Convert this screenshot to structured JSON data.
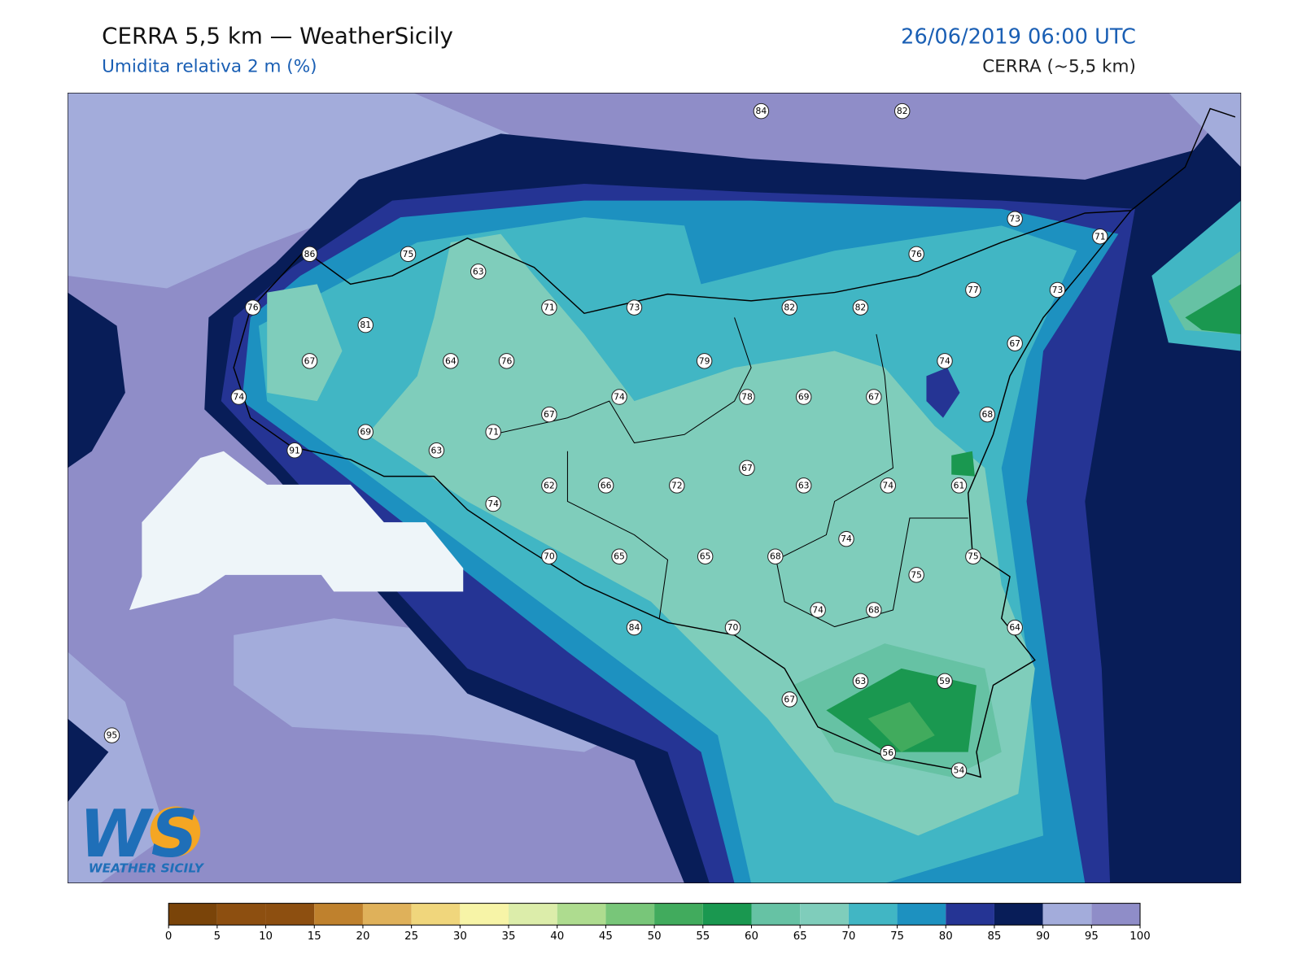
{
  "header": {
    "title": "CERRA 5,5 km — WeatherSicily",
    "subtitle": "Umidita relativa 2 m (%)",
    "datetime": "26/06/2019 06:00 UTC",
    "model": "CERRA (~5,5 km)"
  },
  "stations": [
    84,
    82,
    73,
    71,
    86,
    75,
    63,
    76,
    77,
    73,
    76,
    81,
    71,
    73,
    82,
    82,
    67,
    67,
    64,
    76,
    79,
    74,
    74,
    74,
    78,
    69,
    67,
    68,
    69,
    67,
    71,
    91,
    63,
    67,
    62,
    66,
    72,
    63,
    74,
    61,
    74,
    74,
    75,
    70,
    65,
    65,
    68,
    75,
    74,
    68,
    84,
    70,
    64,
    63,
    59,
    67,
    95,
    56,
    54
  ],
  "colorbar": {
    "ticks": [
      0,
      5,
      10,
      15,
      20,
      25,
      30,
      35,
      40,
      45,
      50,
      55,
      60,
      65,
      70,
      75,
      80,
      85,
      90,
      95,
      100
    ],
    "colors": [
      "#7a4409",
      "#8d4f10",
      "#8d4f10",
      "#bf812d",
      "#dfb15a",
      "#f0d67c",
      "#f7f4a7",
      "#dcedaa",
      "#aedc8f",
      "#78c679",
      "#41ab5d",
      "#1a9850",
      "#66c2a4",
      "#7fcdbb",
      "#41b6c4",
      "#1d91c0",
      "#253494",
      "#081d58",
      "#a3acdb",
      "#8f8dc8"
    ]
  },
  "logo": {
    "mark": "WS",
    "caption": "WEATHER SICILY"
  }
}
